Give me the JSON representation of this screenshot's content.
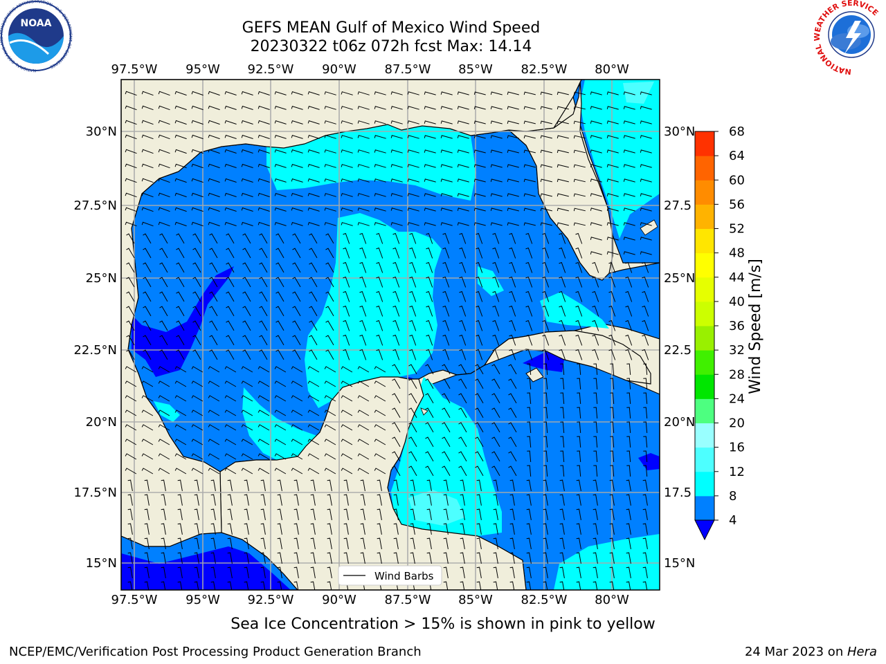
{
  "header": {
    "title_line1": "GEFS MEAN Gulf of Mexico Wind Speed",
    "title_line2": "20230322 t06z 072h fcst   Max: 14.14"
  },
  "logos": {
    "left": "NOAA",
    "left_ring_text": "NATIONAL OCEANIC AND ATMOSPHERIC ADMINISTRATION · U.S. DEPARTMENT OF COMMERCE",
    "right_ring_text": "NATIONAL WEATHER SERVICE"
  },
  "map": {
    "lon_ticks": [
      "97.5°W",
      "95°W",
      "92.5°W",
      "90°W",
      "87.5°W",
      "85°W",
      "82.5°W",
      "80°W"
    ],
    "lat_ticks": [
      "30°N",
      "27.5°N",
      "25°N",
      "22.5°N",
      "20°N",
      "17.5°N",
      "15°N"
    ],
    "lat_ticks_right": [
      "30°N",
      "27.5",
      "25°N",
      "22.5",
      "20°N",
      "17.5",
      "15°N"
    ],
    "legend_label": "Wind Barbs",
    "colors": {
      "land": "#f0eedb",
      "ocean": "#0080ff",
      "cyan": "#00ffff",
      "lightcyan": "#4dffff",
      "darkblue": "#0000ff"
    }
  },
  "colorbar": {
    "label": "Wind Speed [m/s]",
    "ticks": [
      "4",
      "8",
      "12",
      "16",
      "20",
      "24",
      "28",
      "32",
      "36",
      "40",
      "44",
      "48",
      "52",
      "56",
      "60",
      "64",
      "68"
    ],
    "colors": [
      "#0080ff",
      "#00ffff",
      "#4dffff",
      "#99ffff",
      "#4dff80",
      "#00e600",
      "#40f000",
      "#99f000",
      "#ccff00",
      "#e6ff00",
      "#ffff00",
      "#ffe600",
      "#ffb300",
      "#ff8c00",
      "#ff6400",
      "#ff3200"
    ],
    "under_color": "#0000ff"
  },
  "footer": {
    "note": "Sea Ice Concentration > 15% is shown in pink to yellow",
    "credit": "NCEP/EMC/Verification Post Processing Product Generation Branch",
    "date": "24 Mar 2023 on ",
    "machine": "Hera"
  }
}
